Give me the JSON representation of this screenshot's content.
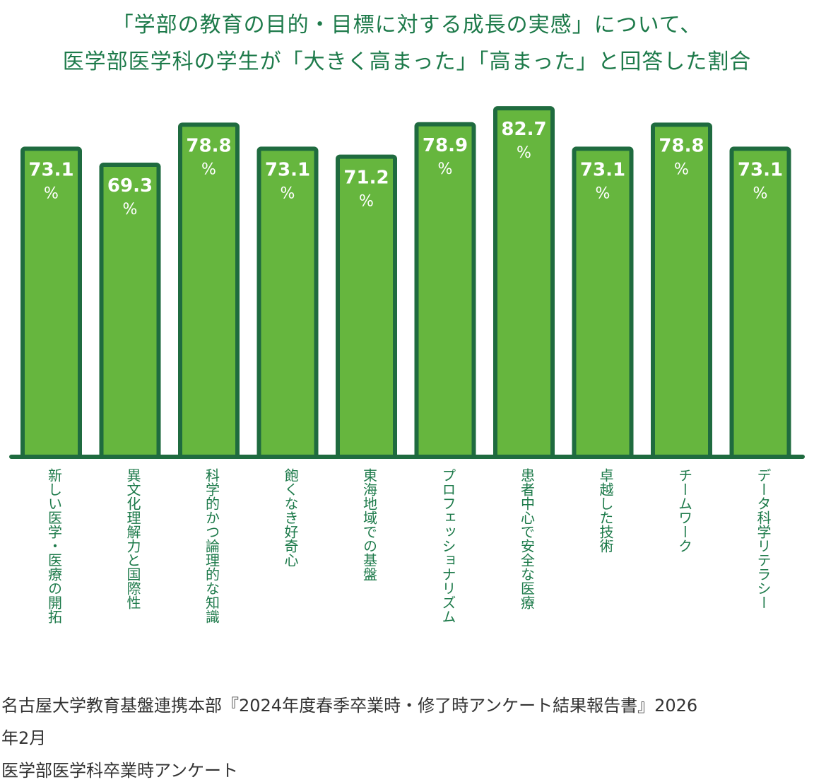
{
  "title_line1": "「学部の教育の目的・目標に対する成長の実感」について、",
  "title_line2": "医学部医学科の学生が「大きく高まった」「高まった」と回答した割合",
  "chart_data": {
    "type": "bar",
    "title": "「学部の教育の目的・目標に対する成長の実感」について、医学部医学科の学生が「大きく高まった」「高まった」と回答した割合",
    "categories": [
      "新しい医学・医療の開拓",
      "異文化理解力と国際性",
      "科学的かつ論理的な知識",
      "飽くなき好奇心",
      "東海地域での基盤",
      "プロフェッショナリズム",
      "患者中心で安全な医療",
      "卓越した技術",
      "チームワーク",
      "データ科学リテラシー"
    ],
    "values": [
      73.1,
      69.3,
      78.8,
      73.1,
      71.2,
      78.9,
      82.7,
      73.1,
      78.8,
      73.1
    ],
    "value_labels": [
      "73.1",
      "69.3",
      "78.8",
      "73.1",
      "71.2",
      "78.9",
      "82.7",
      "73.1",
      "78.8",
      "73.1"
    ],
    "unit": "%",
    "bar_color": "#66b63e",
    "outline_color": "#1f6b3f",
    "text_color": "#1d7a4a"
  },
  "source": {
    "line1": "名古屋大学教育基盤連携本部『2024年度春季卒業時・修了時アンケート結果報告書』2026",
    "line2": "年2月",
    "line3": "医学部医学科卒業時アンケート"
  }
}
